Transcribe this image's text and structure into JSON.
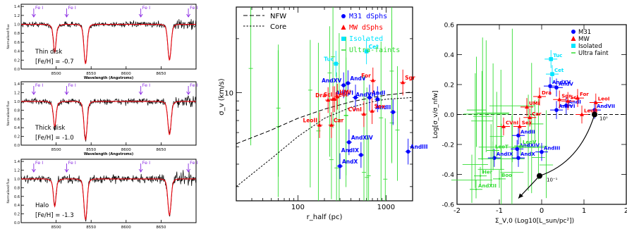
{
  "chart_data": [
    {
      "type": "line",
      "panel": "spectrum",
      "xlabel": "Wavelength (Angstroms)",
      "ylabel": "Normalised flux",
      "xlim": [
        8450,
        8700
      ],
      "ylim": [
        0,
        1.45
      ],
      "xticks": [
        8500,
        8550,
        8600,
        8650
      ],
      "yticks": [
        0,
        0.2,
        0.4,
        0.6,
        0.8,
        1.0,
        1.2,
        1.4
      ],
      "line_markers": [
        {
          "label": "Fe I",
          "x": 8468
        },
        {
          "label": "Fe I",
          "x": 8515
        },
        {
          "label": "Fe I",
          "x": 8621
        },
        {
          "label": "Fe I",
          "x": 8689
        }
      ],
      "absorption_lines": [
        8498,
        8542,
        8662
      ],
      "label_lines": [
        "Thin disk",
        "[Fe/H] = -0.7"
      ],
      "line_depths": [
        0.55,
        0.8,
        0.72
      ],
      "noise": 0.06
    },
    {
      "type": "line",
      "panel": "spectrum",
      "xlabel": "Wavelength (Angstroms)",
      "ylabel": "Normalised flux",
      "xlim": [
        8450,
        8700
      ],
      "ylim": [
        0,
        1.45
      ],
      "xticks": [
        8500,
        8550,
        8600,
        8650
      ],
      "yticks": [
        0,
        0.2,
        0.4,
        0.6,
        0.8,
        1.0,
        1.2,
        1.4
      ],
      "line_markers": [
        {
          "label": "Fe I",
          "x": 8468
        },
        {
          "label": "Fe I",
          "x": 8515
        },
        {
          "label": "Fe I",
          "x": 8621
        },
        {
          "label": "Fe I",
          "x": 8689
        }
      ],
      "absorption_lines": [
        8498,
        8542,
        8662
      ],
      "label_lines": [
        "Thick disk",
        "[Fe/H] = -1.0"
      ],
      "line_depths": [
        0.5,
        0.8,
        0.68
      ],
      "noise": 0.07
    },
    {
      "type": "line",
      "panel": "spectrum",
      "xlabel": "Wavelength (Angstroms)",
      "ylabel": "Normalised flux",
      "xlim": [
        8450,
        8700
      ],
      "ylim": [
        0,
        1.45
      ],
      "xticks": [
        8500,
        8550,
        8600,
        8650
      ],
      "yticks": [
        0,
        0.2,
        0.4,
        0.6,
        0.8,
        1.0,
        1.2,
        1.4
      ],
      "line_markers": [
        {
          "label": "Fe I",
          "x": 8468
        },
        {
          "label": "Fe I",
          "x": 8515
        },
        {
          "label": "Fe I",
          "x": 8621
        },
        {
          "label": "Fe I",
          "x": 8689
        }
      ],
      "absorption_lines": [
        8498,
        8542,
        8662
      ],
      "label_lines": [
        "Halo",
        "[Fe/H] = -1.3"
      ],
      "line_depths": [
        0.55,
        0.85,
        0.75
      ],
      "noise": 0.09
    },
    {
      "type": "scatter",
      "xlabel": "r_half (pc)",
      "ylabel": "σ_v (km/s)",
      "xscale": "log",
      "yscale": "log",
      "xlim": [
        20,
        2000
      ],
      "ylim": [
        2.5,
        30
      ],
      "xticks": [
        100,
        1000
      ],
      "yticks": [
        10
      ],
      "legend": {
        "lines": [
          "NFW",
          "Core"
        ],
        "markers": [
          "M31 dSphs",
          "MW dSphs",
          "Isolated",
          "Ultra-faints"
        ]
      },
      "colors": {
        "M31 dSphs": "#0000ff",
        "MW dSphs": "#ff0000",
        "Isolated": "#00e5ff",
        "Ultra-faints": "#33dd33"
      },
      "curves": {
        "NFW": {
          "x": [
            20,
            50,
            100,
            200,
            400,
            700,
            1000,
            2000
          ],
          "y": [
            5.2,
            6.2,
            7.2,
            8.1,
            8.9,
            9.4,
            9.7,
            10.1
          ]
        },
        "Core": {
          "x": [
            20,
            50,
            100,
            200,
            400,
            700,
            1000,
            2000
          ],
          "y": [
            3.0,
            4.3,
            5.7,
            7.2,
            8.3,
            8.9,
            9.2,
            9.4
          ]
        }
      },
      "series": [
        {
          "name": "M31 dSphs",
          "points": [
            {
              "label": "AndXV",
              "x": 330,
              "y": 11.0
            },
            {
              "label": "AndV",
              "x": 370,
              "y": 11.3
            },
            {
              "label": "AndVI",
              "x": 450,
              "y": 9.4
            },
            {
              "label": "AndI",
              "x": 650,
              "y": 9.4
            },
            {
              "label": "AndVII",
              "x": 800,
              "y": 9.2
            },
            {
              "label": "AndXIV",
              "x": 380,
              "y": 5.3
            },
            {
              "label": "AndIX",
              "x": 520,
              "y": 4.5
            },
            {
              "label": "AndX",
              "x": 300,
              "y": 3.9
            },
            {
              "label": "AndII",
              "x": 1200,
              "y": 7.8
            },
            {
              "label": "AndIII",
              "x": 1780,
              "y": 4.7
            }
          ]
        },
        {
          "name": "MW dSphs",
          "points": [
            {
              "label": "LeoII",
              "x": 176,
              "y": 6.6
            },
            {
              "label": "LeoI",
              "x": 250,
              "y": 9.2
            },
            {
              "label": "Dra",
              "x": 220,
              "y": 9.1
            },
            {
              "label": "UMi",
              "x": 280,
              "y": 9.5
            },
            {
              "label": "Scl",
              "x": 260,
              "y": 9.2
            },
            {
              "label": "Car",
              "x": 240,
              "y": 6.6
            },
            {
              "label": "For",
              "x": 710,
              "y": 11.7
            },
            {
              "label": "Sex",
              "x": 695,
              "y": 7.9
            },
            {
              "label": "CVnI",
              "x": 560,
              "y": 7.6
            },
            {
              "label": "Sgr",
              "x": 1550,
              "y": 11.4
            }
          ]
        },
        {
          "name": "Isolated",
          "points": [
            {
              "label": "Tuc",
              "x": 270,
              "y": 14.5
            },
            {
              "label": "Cet",
              "x": 600,
              "y": 17.0
            }
          ]
        }
      ],
      "ultra_faint_count": 20
    },
    {
      "type": "scatter",
      "xlabel": "Σ_V,0 (Log10[L_sun/pc²])",
      "ylabel": "Log[σ_v/σ_nfw]",
      "xlim": [
        -2,
        2
      ],
      "ylim": [
        -0.6,
        0.6
      ],
      "xticks": [
        -2,
        -1,
        0,
        1,
        2
      ],
      "yticks": [
        -0.6,
        -0.4,
        -0.2,
        0.0,
        0.2,
        0.4,
        0.6
      ],
      "legend": {
        "markers": [
          "M31",
          "MW",
          "Isolated",
          "Ultra faint"
        ]
      },
      "colors": {
        "M31": "#0000ff",
        "MW": "#ff0000",
        "Isolated": "#00e5ff",
        "Ultra faint": "#33dd33"
      },
      "reference_track": {
        "points": [
          {
            "label": "10⁰",
            "x": 1.25,
            "y": 0.0
          },
          {
            "label": "10⁻¹",
            "x": -0.05,
            "y": -0.41
          }
        ],
        "arrow_end": {
          "x": -0.55,
          "y": -0.56
        }
      },
      "series": [
        {
          "name": "M31",
          "points": [
            {
              "label": "AndXV",
              "x": 0.2,
              "y": 0.19
            },
            {
              "label": "AndV",
              "x": 0.35,
              "y": 0.18
            },
            {
              "label": "AndVI",
              "x": 0.35,
              "y": 0.03
            },
            {
              "label": "AndI",
              "x": 0.58,
              "y": 0.06
            },
            {
              "label": "AndVII",
              "x": 1.25,
              "y": 0.03
            },
            {
              "label": "AndII",
              "x": -0.55,
              "y": -0.14
            },
            {
              "label": "AndXIV",
              "x": -0.58,
              "y": -0.23
            },
            {
              "label": "AndIII",
              "x": 0.0,
              "y": -0.25
            },
            {
              "label": "AndIX",
              "x": -1.12,
              "y": -0.29
            },
            {
              "label": "AndX",
              "x": -0.55,
              "y": -0.29
            }
          ]
        },
        {
          "name": "MW",
          "points": [
            {
              "label": "UMi",
              "x": -0.35,
              "y": 0.05
            },
            {
              "label": "Dra",
              "x": -0.05,
              "y": 0.12
            },
            {
              "label": "Sgr",
              "x": 0.42,
              "y": 0.1
            },
            {
              "label": "Scl",
              "x": 0.62,
              "y": 0.09
            },
            {
              "label": "For",
              "x": 0.85,
              "y": 0.11
            },
            {
              "label": "LeoI",
              "x": 1.28,
              "y": 0.08
            },
            {
              "label": "LeoII",
              "x": 0.95,
              "y": 0.0
            },
            {
              "label": "Car",
              "x": -0.28,
              "y": -0.02
            },
            {
              "label": "Sex",
              "x": -0.52,
              "y": -0.08
            },
            {
              "label": "CVnI",
              "x": -0.9,
              "y": -0.08
            }
          ]
        },
        {
          "name": "Isolated",
          "points": [
            {
              "label": "Tuc",
              "x": 0.22,
              "y": 0.37
            },
            {
              "label": "Cet",
              "x": 0.25,
              "y": 0.27
            }
          ]
        },
        {
          "name": "Ultra faint",
          "points": [
            {
              "label": "LeoV",
              "x": -0.5,
              "y": -0.21
            },
            {
              "label": "LeoT",
              "x": -1.15,
              "y": -0.24
            },
            {
              "label": "Boo",
              "x": -1.0,
              "y": -0.43
            },
            {
              "label": "Her",
              "x": -1.45,
              "y": -0.41
            },
            {
              "label": "AndXII",
              "x": -1.55,
              "y": -0.5
            }
          ]
        }
      ],
      "ultra_faint_count": 18
    }
  ]
}
